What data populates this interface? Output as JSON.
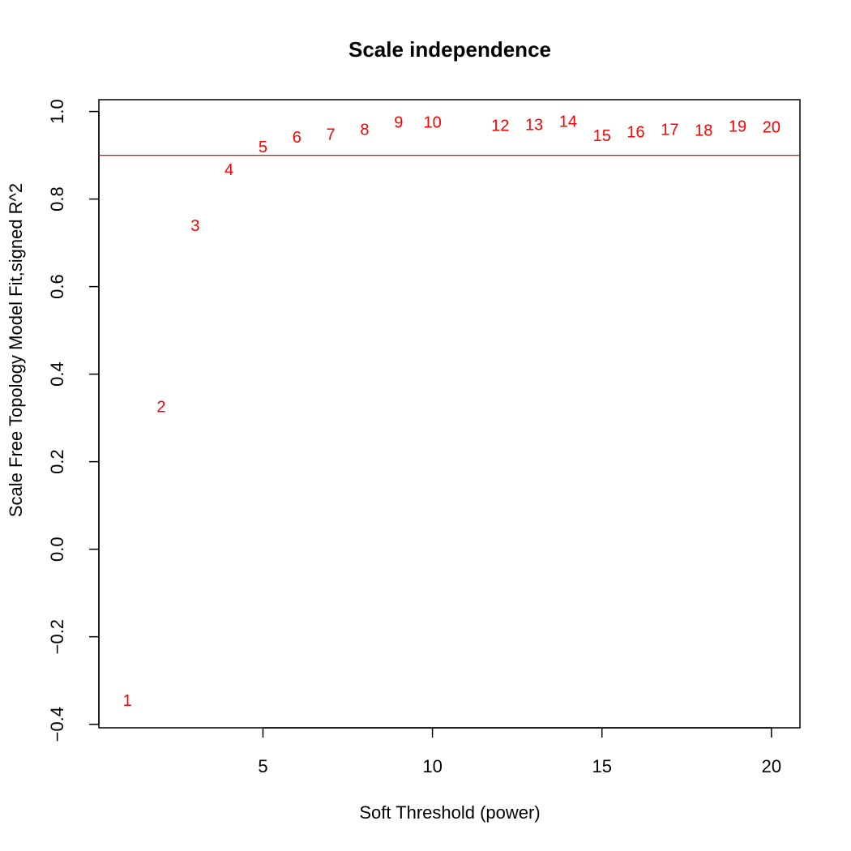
{
  "chart_data": {
    "type": "scatter",
    "title": "Scale independence",
    "xlabel": "Soft Threshold (power)",
    "ylabel": "Scale Free Topology Model Fit,signed R^2",
    "xlim": [
      0.16,
      20.84
    ],
    "ylim": [
      -0.408,
      1.027
    ],
    "x_ticks": [
      5,
      10,
      15,
      20
    ],
    "x_tick_labels": [
      "5",
      "10",
      "15",
      "20"
    ],
    "y_ticks": [
      -0.4,
      -0.2,
      0.0,
      0.2,
      0.4,
      0.6,
      0.8,
      1.0
    ],
    "y_tick_labels": [
      "−0.4",
      "−0.2",
      "0.0",
      "0.2",
      "0.4",
      "0.6",
      "0.8",
      "1.0"
    ],
    "reference_line": {
      "y": 0.9,
      "color": "#ff0000"
    },
    "point_color": "#ff0000",
    "points": [
      {
        "x": 1,
        "y": -0.347,
        "label": "1"
      },
      {
        "x": 2,
        "y": 0.324,
        "label": "2"
      },
      {
        "x": 3,
        "y": 0.738,
        "label": "3"
      },
      {
        "x": 4,
        "y": 0.866,
        "label": "4"
      },
      {
        "x": 5,
        "y": 0.918,
        "label": "5"
      },
      {
        "x": 6,
        "y": 0.94,
        "label": "6"
      },
      {
        "x": 7,
        "y": 0.946,
        "label": "7"
      },
      {
        "x": 8,
        "y": 0.958,
        "label": "8"
      },
      {
        "x": 9,
        "y": 0.974,
        "label": "9"
      },
      {
        "x": 10,
        "y": 0.974,
        "label": "10"
      },
      {
        "x": 12,
        "y": 0.967,
        "label": "12"
      },
      {
        "x": 13,
        "y": 0.969,
        "label": "13"
      },
      {
        "x": 14,
        "y": 0.976,
        "label": "14"
      },
      {
        "x": 15,
        "y": 0.944,
        "label": "15"
      },
      {
        "x": 16,
        "y": 0.952,
        "label": "16"
      },
      {
        "x": 17,
        "y": 0.958,
        "label": "17"
      },
      {
        "x": 18,
        "y": 0.956,
        "label": "18"
      },
      {
        "x": 19,
        "y": 0.965,
        "label": "19"
      },
      {
        "x": 20,
        "y": 0.963,
        "label": "20"
      }
    ]
  }
}
